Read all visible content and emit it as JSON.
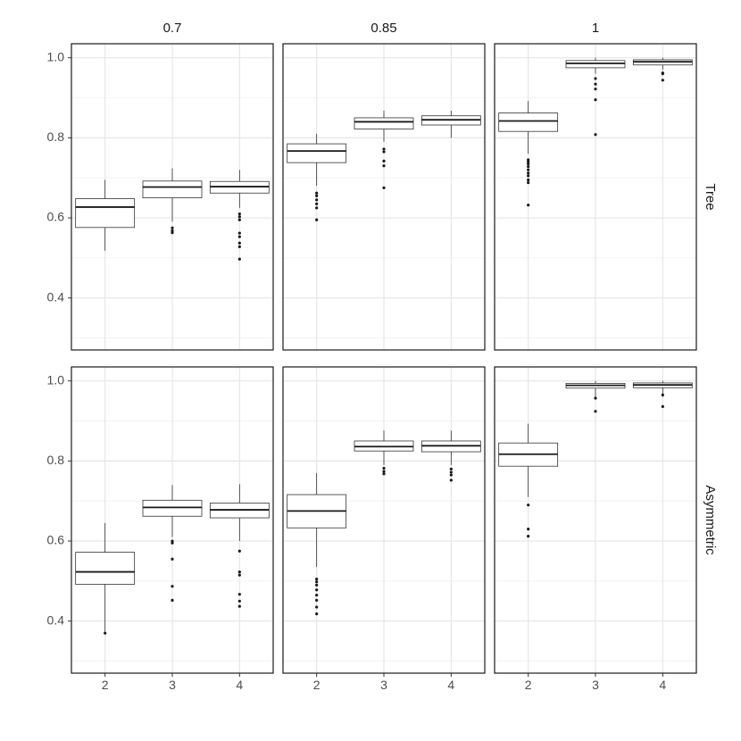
{
  "chart_data": {
    "type": "boxplot",
    "title": "",
    "xlabel": "",
    "ylabel": "",
    "ylim": [
      0.27,
      1.035
    ],
    "y_ticks": [
      "0.4",
      "0.6",
      "0.8",
      "1.0"
    ],
    "y_tick_values": [
      0.4,
      0.6,
      0.8,
      1.0
    ],
    "grid": true,
    "categories": [
      "2",
      "3",
      "4"
    ],
    "columns": [
      "0.7",
      "0.85",
      "1"
    ],
    "rows": [
      "Tree",
      "Asymmetric"
    ],
    "panels": [
      {
        "row": "Tree",
        "column": "0.7",
        "boxes": [
          {
            "category": "2",
            "min": 0.518,
            "q1": 0.576,
            "median": 0.627,
            "q3": 0.648,
            "max": 0.695,
            "outliers": []
          },
          {
            "category": "3",
            "min": 0.59,
            "q1": 0.65,
            "median": 0.677,
            "q3": 0.692,
            "max": 0.724,
            "outliers": [
              0.575,
              0.568,
              0.563
            ]
          },
          {
            "category": "4",
            "min": 0.625,
            "q1": 0.662,
            "median": 0.678,
            "q3": 0.691,
            "max": 0.72,
            "outliers": [
              0.61,
              0.603,
              0.595,
              0.562,
              0.553,
              0.537,
              0.528,
              0.497
            ]
          }
        ]
      },
      {
        "row": "Tree",
        "column": "0.85",
        "boxes": [
          {
            "category": "2",
            "min": 0.68,
            "q1": 0.738,
            "median": 0.767,
            "q3": 0.785,
            "max": 0.81,
            "outliers": [
              0.662,
              0.655,
              0.645,
              0.635,
              0.625,
              0.595
            ]
          },
          {
            "category": "3",
            "min": 0.79,
            "q1": 0.822,
            "median": 0.84,
            "q3": 0.85,
            "max": 0.868,
            "outliers": [
              0.772,
              0.765,
              0.742,
              0.73,
              0.675
            ]
          },
          {
            "category": "4",
            "min": 0.8,
            "q1": 0.832,
            "median": 0.845,
            "q3": 0.855,
            "max": 0.868,
            "outliers": []
          }
        ]
      },
      {
        "row": "Tree",
        "column": "1",
        "boxes": [
          {
            "category": "2",
            "min": 0.76,
            "q1": 0.816,
            "median": 0.842,
            "q3": 0.862,
            "max": 0.892,
            "outliers": [
              0.745,
              0.74,
              0.735,
              0.728,
              0.72,
              0.712,
              0.705,
              0.695,
              0.688,
              0.632
            ]
          },
          {
            "category": "3",
            "min": 0.96,
            "q1": 0.975,
            "median": 0.986,
            "q3": 0.993,
            "max": 1.0,
            "outliers": [
              0.948,
              0.934,
              0.922,
              0.895,
              0.808
            ]
          },
          {
            "category": "4",
            "min": 0.97,
            "q1": 0.982,
            "median": 0.99,
            "q3": 0.995,
            "max": 1.0,
            "outliers": [
              0.962,
              0.96,
              0.944
            ]
          }
        ]
      },
      {
        "row": "Asymmetric",
        "column": "0.7",
        "boxes": [
          {
            "category": "2",
            "min": 0.372,
            "q1": 0.492,
            "median": 0.523,
            "q3": 0.572,
            "max": 0.645,
            "outliers": [
              0.37
            ]
          },
          {
            "category": "3",
            "min": 0.61,
            "q1": 0.662,
            "median": 0.684,
            "q3": 0.702,
            "max": 0.74,
            "outliers": [
              0.6,
              0.595,
              0.555,
              0.487,
              0.452
            ]
          },
          {
            "category": "4",
            "min": 0.6,
            "q1": 0.658,
            "median": 0.678,
            "q3": 0.695,
            "max": 0.742,
            "outliers": [
              0.575,
              0.523,
              0.515,
              0.467,
              0.45,
              0.437
            ]
          }
        ]
      },
      {
        "row": "Asymmetric",
        "column": "0.85",
        "boxes": [
          {
            "category": "2",
            "min": 0.535,
            "q1": 0.633,
            "median": 0.675,
            "q3": 0.716,
            "max": 0.77,
            "outliers": [
              0.505,
              0.498,
              0.49,
              0.478,
              0.465,
              0.452,
              0.435,
              0.418
            ]
          },
          {
            "category": "3",
            "min": 0.79,
            "q1": 0.825,
            "median": 0.836,
            "q3": 0.85,
            "max": 0.876,
            "outliers": [
              0.782,
              0.774,
              0.768
            ]
          },
          {
            "category": "4",
            "min": 0.79,
            "q1": 0.823,
            "median": 0.838,
            "q3": 0.85,
            "max": 0.876,
            "outliers": [
              0.78,
              0.772,
              0.765,
              0.752
            ]
          }
        ]
      },
      {
        "row": "Asymmetric",
        "column": "1",
        "boxes": [
          {
            "category": "2",
            "min": 0.71,
            "q1": 0.787,
            "median": 0.817,
            "q3": 0.845,
            "max": 0.893,
            "outliers": [
              0.69,
              0.63,
              0.612
            ]
          },
          {
            "category": "3",
            "min": 0.96,
            "q1": 0.982,
            "median": 0.989,
            "q3": 0.994,
            "max": 1.0,
            "outliers": [
              0.957,
              0.924
            ]
          },
          {
            "category": "4",
            "min": 0.96,
            "q1": 0.983,
            "median": 0.99,
            "q3": 0.995,
            "max": 1.0,
            "outliers": [
              0.965,
              0.936
            ]
          }
        ]
      }
    ]
  }
}
